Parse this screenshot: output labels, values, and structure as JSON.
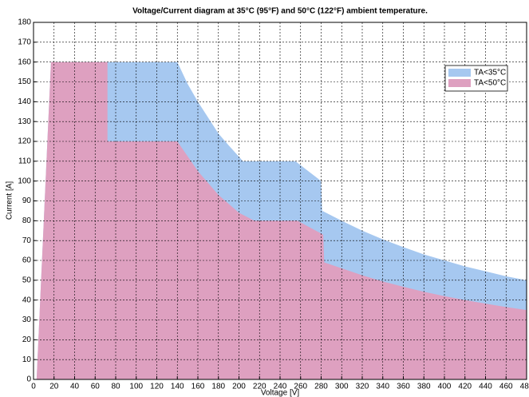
{
  "chart_data": {
    "type": "area",
    "title": "Voltage/Current diagram at 35°C (95°F) and 50°C (122°F) ambient temperature.",
    "xlabel": "Voltage [V]",
    "ylabel": "Current [A]",
    "xlim": [
      0,
      480
    ],
    "ylim": [
      0,
      180
    ],
    "xticks": [
      0,
      20,
      40,
      60,
      80,
      100,
      120,
      140,
      160,
      180,
      200,
      220,
      240,
      260,
      280,
      300,
      320,
      340,
      360,
      380,
      400,
      420,
      440,
      460,
      480
    ],
    "yticks": [
      0,
      10,
      20,
      30,
      40,
      50,
      60,
      70,
      80,
      90,
      100,
      110,
      120,
      130,
      140,
      150,
      160,
      170,
      180
    ],
    "grid": true,
    "legend": "upper right",
    "series": [
      {
        "name": "TA<35°C",
        "color": "#a6c8f0",
        "x": [
          3,
          17,
          140,
          150,
          160,
          170,
          180,
          190,
          204,
          255,
          280,
          281,
          300,
          320,
          340,
          360,
          380,
          400,
          420,
          440,
          460,
          480
        ],
        "values": [
          0,
          160,
          160,
          149,
          140,
          132,
          124,
          118,
          110,
          110,
          100,
          85,
          80,
          75,
          70.6,
          66.7,
          63,
          60,
          57,
          54.5,
          52,
          50
        ]
      },
      {
        "name": "TA<50°C",
        "color": "#dea0c0",
        "x": [
          3,
          17,
          72,
          72,
          140,
          160,
          180,
          200,
          215,
          257,
          282,
          283,
          300,
          320,
          340,
          360,
          380,
          400,
          420,
          440,
          460,
          480
        ],
        "values": [
          0,
          160,
          160,
          120,
          120,
          105,
          93,
          84,
          80,
          80,
          73,
          59,
          56,
          52.5,
          49.4,
          46.7,
          44.2,
          42,
          40,
          38.2,
          36.5,
          35
        ]
      }
    ]
  }
}
